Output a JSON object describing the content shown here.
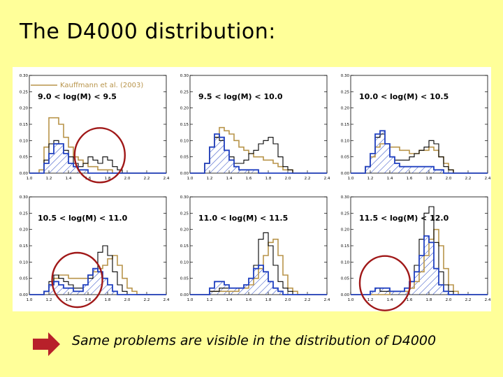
{
  "slide": {
    "title": "The D4000 distribution:",
    "caption": "Same problems are visible in the distribution of D4000"
  },
  "colors": {
    "background": "#ffff99",
    "kauffmann": "#b8944a",
    "black_hist": "#000000",
    "blue_hist": "#2040c0",
    "circle": "#a01818",
    "arrow": "#b8202a"
  },
  "chart_data": {
    "type": "histogram-grid",
    "legend": "Kauffmann et al. (2003)",
    "xlim": [
      1.0,
      2.4
    ],
    "ylim": [
      0.0,
      0.3
    ],
    "xticks": [
      "1.0",
      "1.2",
      "1.4",
      "1.6",
      "1.8",
      "2.0",
      "2.2",
      "2.4"
    ],
    "yticks": [
      "0.00",
      "0.05",
      "0.10",
      "0.15",
      "0.20",
      "0.25",
      "0.30"
    ],
    "bin_edges": [
      1.0,
      1.05,
      1.1,
      1.15,
      1.2,
      1.25,
      1.3,
      1.35,
      1.4,
      1.45,
      1.5,
      1.55,
      1.6,
      1.65,
      1.7,
      1.75,
      1.8,
      1.85,
      1.9,
      1.95,
      2.0,
      2.05,
      2.1,
      2.15,
      2.2,
      2.25,
      2.3,
      2.35,
      2.4
    ],
    "panels": [
      {
        "label": "9.0  < log(M) <   9.5",
        "kauffmann": [
          0,
          0,
          0.01,
          0.08,
          0.17,
          0.17,
          0.15,
          0.11,
          0.08,
          0.05,
          0.04,
          0.03,
          0.02,
          0.02,
          0.01,
          0.01,
          0.01,
          0,
          0,
          0,
          0,
          0,
          0,
          0,
          0,
          0,
          0,
          0
        ],
        "black": [
          0,
          0,
          0,
          0.04,
          0.09,
          0.1,
          0.09,
          0.07,
          0.05,
          0.03,
          0.02,
          0.03,
          0.05,
          0.04,
          0.03,
          0.05,
          0.04,
          0.02,
          0.01,
          0,
          0,
          0,
          0,
          0,
          0,
          0,
          0,
          0
        ],
        "blue": [
          0,
          0,
          0,
          0.03,
          0.06,
          0.09,
          0.09,
          0.06,
          0.03,
          0.02,
          0.01,
          0.01,
          0,
          0,
          0,
          0,
          0,
          0,
          0,
          0,
          0,
          0,
          0,
          0,
          0,
          0,
          0,
          0
        ],
        "circle": {
          "cx": 1.72,
          "cy": 0.055
        }
      },
      {
        "label": "9.5  < log(M) < 10.0",
        "kauffmann": [
          0,
          0,
          0,
          0.03,
          0.08,
          0.11,
          0.14,
          0.13,
          0.12,
          0.1,
          0.08,
          0.07,
          0.06,
          0.05,
          0.05,
          0.04,
          0.04,
          0.03,
          0.02,
          0.01,
          0.01,
          0,
          0,
          0,
          0,
          0,
          0,
          0
        ],
        "black": [
          0,
          0,
          0,
          0.03,
          0.08,
          0.11,
          0.1,
          0.07,
          0.05,
          0.03,
          0.03,
          0.04,
          0.06,
          0.07,
          0.09,
          0.1,
          0.11,
          0.09,
          0.05,
          0.02,
          0.01,
          0,
          0,
          0,
          0,
          0,
          0,
          0
        ],
        "blue": [
          0,
          0,
          0,
          0.03,
          0.08,
          0.12,
          0.11,
          0.07,
          0.04,
          0.02,
          0.01,
          0.01,
          0.01,
          0.01,
          0,
          0,
          0,
          0,
          0,
          0,
          0,
          0,
          0,
          0,
          0,
          0,
          0,
          0
        ]
      },
      {
        "label": "10.0  < log(M) < 10.5",
        "kauffmann": [
          0,
          0,
          0,
          0.02,
          0.05,
          0.08,
          0.09,
          0.09,
          0.08,
          0.08,
          0.07,
          0.07,
          0.06,
          0.06,
          0.07,
          0.07,
          0.08,
          0.07,
          0.05,
          0.03,
          0.01,
          0,
          0,
          0,
          0,
          0,
          0,
          0
        ],
        "black": [
          0,
          0,
          0,
          0.02,
          0.06,
          0.11,
          0.12,
          0.09,
          0.05,
          0.04,
          0.04,
          0.04,
          0.05,
          0.06,
          0.07,
          0.08,
          0.1,
          0.09,
          0.05,
          0.02,
          0.01,
          0,
          0,
          0,
          0,
          0,
          0,
          0
        ],
        "blue": [
          0,
          0,
          0,
          0.02,
          0.06,
          0.12,
          0.13,
          0.09,
          0.05,
          0.03,
          0.02,
          0.02,
          0.02,
          0.02,
          0.02,
          0.02,
          0.02,
          0.01,
          0.01,
          0,
          0,
          0,
          0,
          0,
          0,
          0,
          0,
          0
        ]
      },
      {
        "label": "10.5  < log(M) < 11.0",
        "kauffmann": [
          0,
          0,
          0,
          0.01,
          0.03,
          0.05,
          0.06,
          0.06,
          0.05,
          0.05,
          0.05,
          0.05,
          0.06,
          0.07,
          0.08,
          0.09,
          0.11,
          0.12,
          0.09,
          0.05,
          0.02,
          0.01,
          0,
          0,
          0,
          0,
          0,
          0
        ],
        "black": [
          0,
          0,
          0,
          0.01,
          0.04,
          0.06,
          0.05,
          0.04,
          0.03,
          0.02,
          0.02,
          0.03,
          0.05,
          0.08,
          0.13,
          0.15,
          0.12,
          0.07,
          0.03,
          0.01,
          0,
          0,
          0,
          0,
          0,
          0,
          0,
          0
        ],
        "blue": [
          0,
          0,
          0,
          0.01,
          0.03,
          0.04,
          0.03,
          0.02,
          0.02,
          0.01,
          0.01,
          0.03,
          0.06,
          0.08,
          0.07,
          0.05,
          0.03,
          0.01,
          0,
          0,
          0,
          0,
          0,
          0,
          0,
          0,
          0,
          0
        ],
        "circle": {
          "cx": 1.49,
          "cy": 0.045
        }
      },
      {
        "label": "11.0  < log(M) < 11.5",
        "kauffmann": [
          0,
          0,
          0,
          0,
          0.01,
          0.01,
          0.01,
          0.01,
          0.01,
          0.01,
          0.02,
          0.02,
          0.03,
          0.05,
          0.08,
          0.12,
          0.16,
          0.17,
          0.12,
          0.06,
          0.02,
          0.01,
          0,
          0,
          0,
          0,
          0,
          0
        ],
        "black": [
          0,
          0,
          0,
          0,
          0.01,
          0.01,
          0.02,
          0.02,
          0.02,
          0.02,
          0.02,
          0.03,
          0.05,
          0.09,
          0.17,
          0.19,
          0.15,
          0.09,
          0.04,
          0.02,
          0.01,
          0,
          0,
          0,
          0,
          0,
          0,
          0
        ],
        "blue": [
          0,
          0,
          0,
          0,
          0.02,
          0.04,
          0.04,
          0.03,
          0.02,
          0.02,
          0.02,
          0.03,
          0.05,
          0.08,
          0.09,
          0.07,
          0.04,
          0.02,
          0.01,
          0,
          0,
          0,
          0,
          0,
          0,
          0,
          0,
          0
        ]
      },
      {
        "label": "11.5  < log(M) < 12.0",
        "kauffmann": [
          0,
          0,
          0,
          0,
          0,
          0,
          0,
          0,
          0.01,
          0.01,
          0.01,
          0.01,
          0.02,
          0.04,
          0.07,
          0.12,
          0.17,
          0.2,
          0.15,
          0.08,
          0.03,
          0.01,
          0,
          0,
          0,
          0,
          0,
          0
        ],
        "black": [
          0,
          0,
          0,
          0,
          0.01,
          0.02,
          0.01,
          0.01,
          0.01,
          0.01,
          0.01,
          0.02,
          0.04,
          0.09,
          0.17,
          0.25,
          0.27,
          0.16,
          0.07,
          0.03,
          0.01,
          0,
          0,
          0,
          0,
          0,
          0,
          0
        ],
        "blue": [
          0,
          0,
          0,
          0,
          0.01,
          0.02,
          0.02,
          0.02,
          0.01,
          0.01,
          0.01,
          0.02,
          0.04,
          0.07,
          0.12,
          0.18,
          0.16,
          0.08,
          0.03,
          0.01,
          0,
          0,
          0,
          0,
          0,
          0,
          0,
          0
        ],
        "circle": {
          "cx": 1.35,
          "cy": 0.035
        }
      }
    ]
  }
}
